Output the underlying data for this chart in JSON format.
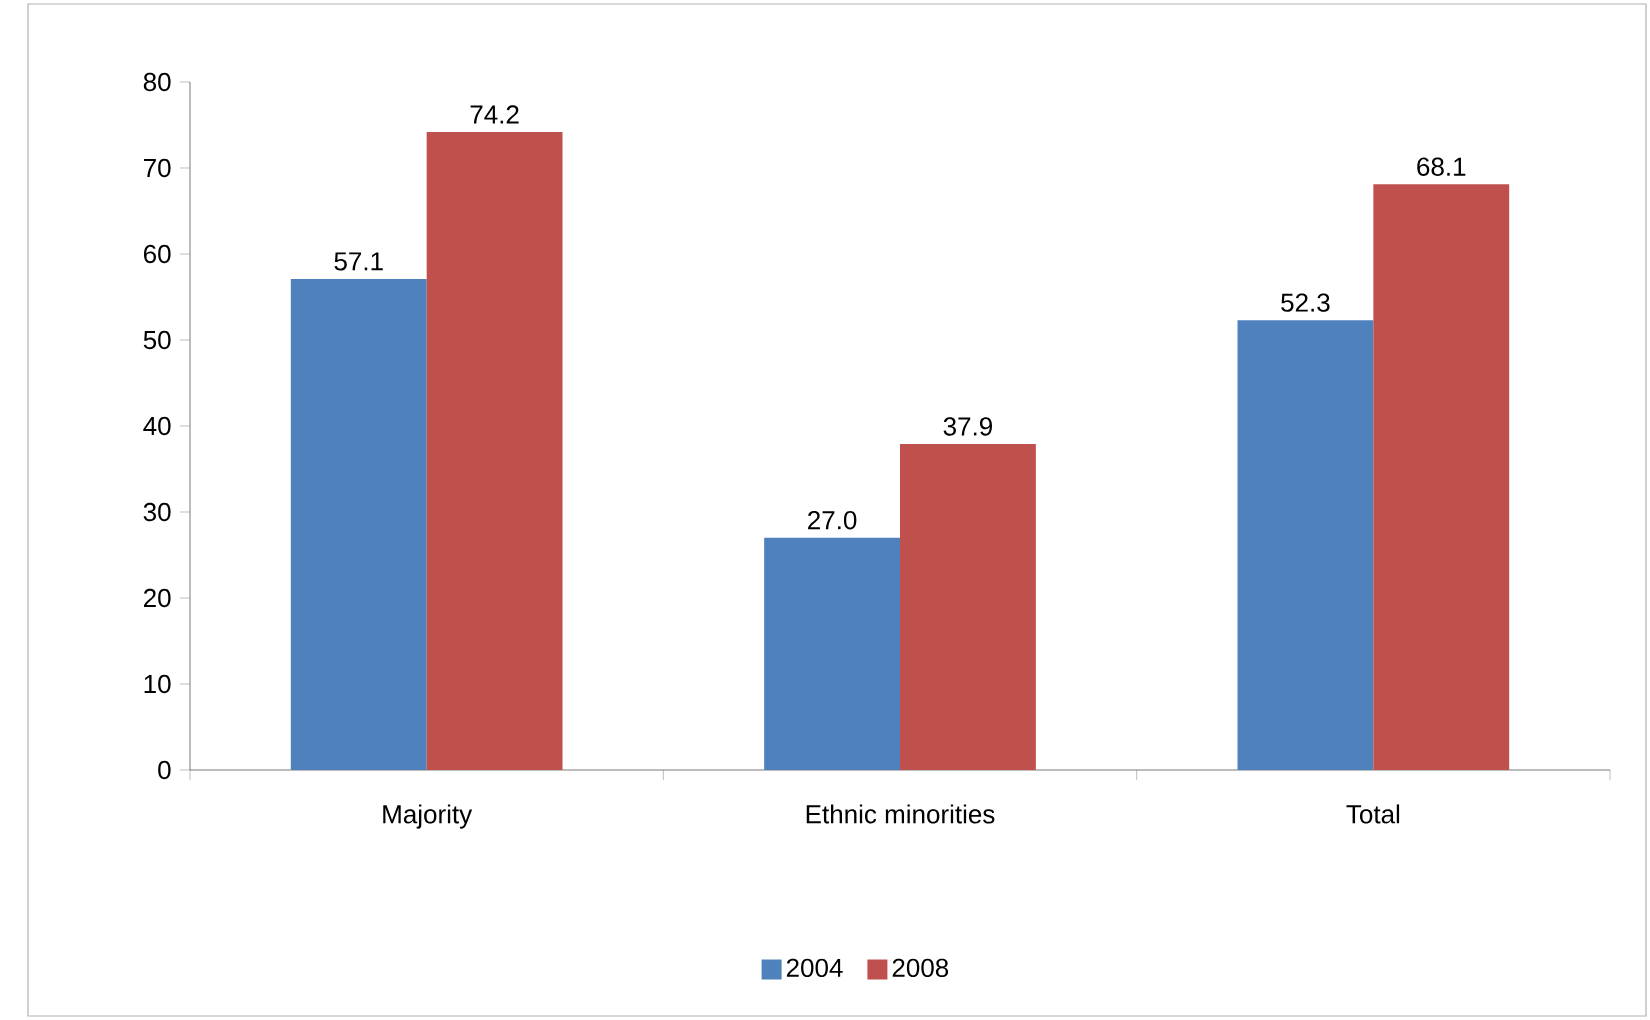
{
  "chart_data": {
    "type": "bar",
    "categories": [
      "Majority",
      "Ethnic minorities",
      "Total"
    ],
    "series": [
      {
        "name": "2004",
        "color": "#4f81bd",
        "values": [
          57.1,
          27.0,
          52.3
        ],
        "value_labels": [
          "57.1",
          "27.0",
          "52.3"
        ]
      },
      {
        "name": "2008",
        "color": "#c0504d",
        "values": [
          74.2,
          37.9,
          68.1
        ],
        "value_labels": [
          "74.2",
          "37.9",
          "68.1"
        ]
      }
    ],
    "ylim": [
      0,
      80
    ],
    "yticks": [
      0,
      10,
      20,
      30,
      40,
      50,
      60,
      70,
      80
    ],
    "legend": "bottom",
    "grid": false
  }
}
